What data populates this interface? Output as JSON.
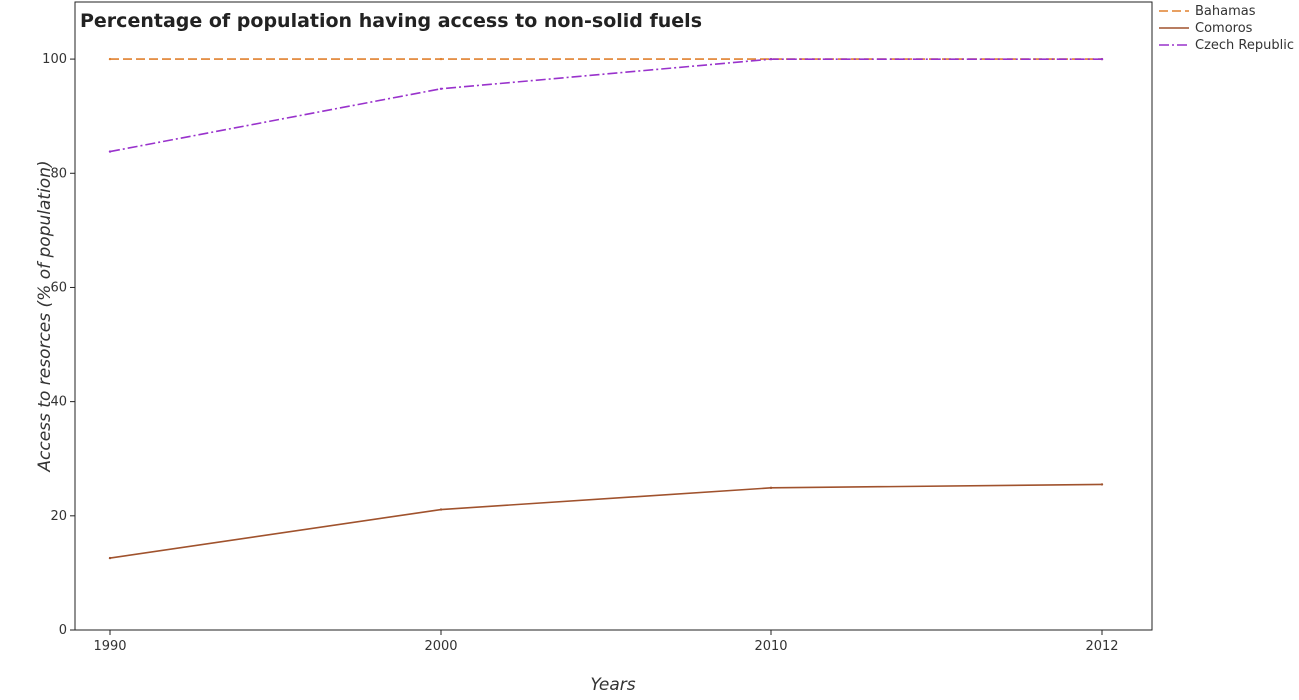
{
  "chart_data": {
    "type": "line",
    "title": "Percentage of population having access to non-solid fuels",
    "xlabel": "Years",
    "ylabel": "Access to resorces (% of population)",
    "x": [
      "1990",
      "2000",
      "2010",
      "2012"
    ],
    "ylim": [
      0,
      110
    ],
    "yticks": [
      "0",
      "20",
      "40",
      "60",
      "80",
      "100"
    ],
    "grid": false,
    "legend_position": "top-right",
    "series": [
      {
        "name": "Bahamas",
        "color": "#e0802e",
        "style": "dashed",
        "values": [
          100,
          100,
          100,
          100
        ]
      },
      {
        "name": "Comoros",
        "color": "#a0522d",
        "style": "solid",
        "values": [
          12.6,
          21.1,
          24.9,
          25.5
        ]
      },
      {
        "name": "Czech Republic",
        "color": "#9932cc",
        "style": "dash-dot",
        "values": [
          83.8,
          94.8,
          99.99,
          99.99
        ]
      }
    ]
  }
}
